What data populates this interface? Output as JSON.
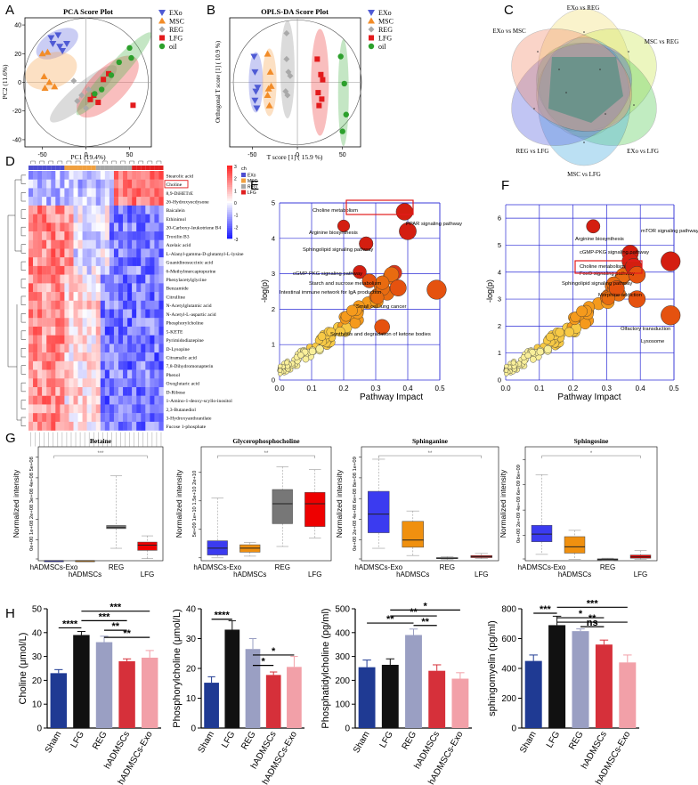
{
  "panel_letters": [
    "A",
    "B",
    "C",
    "D",
    "E",
    "F",
    "G",
    "H"
  ],
  "colors": {
    "exo": "#4f5bd5",
    "msc": "#f28c28",
    "reg": "#a9a9a9",
    "lfg": "#e31a1c",
    "oil": "#2ca02c",
    "sham": "#1f3a93",
    "lfg_bar": "#111111",
    "reg_bar": "#9a9fc3",
    "hadmscs": "#d6303a",
    "exo_bar": "#f2a0a8",
    "grid": "#2b2bd6"
  },
  "legend_groups": [
    "EXo",
    "MSC",
    "REG",
    "LFG",
    "oil"
  ],
  "chart_data": [
    {
      "panel": "A",
      "type": "scatter",
      "title": "PCA Score Plot",
      "xlabel": "PC1 (19.4%)",
      "ylabel": "PC2 (11.6%)",
      "xlim": [
        -70,
        75
      ],
      "ylim": [
        -45,
        45
      ],
      "xticks": [
        -50,
        0,
        50
      ],
      "yticks": [
        -40,
        -20,
        0,
        20,
        40
      ],
      "series": [
        {
          "name": "EXo",
          "points": [
            [
              -40,
              31
            ],
            [
              -32,
              33
            ],
            [
              -22,
              27
            ],
            [
              -30,
              25
            ],
            [
              -27,
              22
            ],
            [
              -38,
              27
            ]
          ]
        },
        {
          "name": "MSC",
          "points": [
            [
              -50,
              20
            ],
            [
              -44,
              21
            ],
            [
              -48,
              4
            ],
            [
              -42,
              0
            ],
            [
              -47,
              -4
            ],
            [
              -36,
              -3
            ]
          ]
        },
        {
          "name": "REG",
          "points": [
            [
              -10,
              -13
            ],
            [
              -5,
              -9
            ],
            [
              0,
              -18
            ],
            [
              3,
              -5
            ],
            [
              -14,
              1
            ]
          ]
        },
        {
          "name": "LFG",
          "points": [
            [
              5,
              -12
            ],
            [
              9,
              -9
            ],
            [
              14,
              -14
            ],
            [
              20,
              2
            ],
            [
              26,
              6
            ],
            [
              54,
              -16
            ]
          ]
        },
        {
          "name": "oil",
          "points": [
            [
              10,
              -8
            ],
            [
              18,
              -5
            ],
            [
              29,
              5
            ],
            [
              38,
              14
            ],
            [
              50,
              24
            ],
            [
              52,
              17
            ]
          ]
        }
      ]
    },
    {
      "panel": "B",
      "type": "scatter",
      "title": "OPLS-DA Score Plot",
      "xlabel": "T score [1] ( 15.9 %)",
      "ylabel": "Orthogonal T score [1] ( 10.9 %)",
      "xlim": [
        -75,
        70
      ],
      "ylim": [
        -50,
        50
      ],
      "xticks": [
        -50,
        0,
        50
      ],
      "yticks": [],
      "series": [
        {
          "name": "EXo",
          "points": [
            [
              -48,
              20
            ],
            [
              -47,
              8
            ],
            [
              -46,
              -7
            ],
            [
              -47,
              -14
            ],
            [
              -45,
              -20
            ],
            [
              -44,
              -4
            ]
          ]
        },
        {
          "name": "MSC",
          "points": [
            [
              -33,
              22
            ],
            [
              -30,
              8
            ],
            [
              -32,
              -5
            ],
            [
              -31,
              -18
            ],
            [
              -29,
              -3
            ],
            [
              -33,
              -10
            ]
          ]
        },
        {
          "name": "REG",
          "points": [
            [
              -12,
              38
            ],
            [
              -12,
              18
            ],
            [
              -10,
              8
            ],
            [
              -8,
              5
            ],
            [
              -13,
              -7
            ],
            [
              -11,
              -10
            ]
          ]
        },
        {
          "name": "LFG",
          "points": [
            [
              22,
              18
            ],
            [
              26,
              6
            ],
            [
              28,
              2
            ],
            [
              23,
              -8
            ],
            [
              27,
              -13
            ],
            [
              24,
              -18
            ]
          ]
        },
        {
          "name": "oil",
          "points": [
            [
              48,
              20
            ],
            [
              52,
              -1
            ],
            [
              54,
              -25
            ],
            [
              50,
              -38
            ]
          ]
        }
      ]
    },
    {
      "panel": "C",
      "type": "venn",
      "sets": [
        "EXo vs REG",
        "MSC vs REG",
        "EXo vs LFG",
        "MSC vs LFG",
        "REG vs LFG",
        "EXo vs MSC"
      ]
    },
    {
      "panel": "D",
      "type": "heatmap",
      "legend_title": "ch",
      "legend_groups": [
        "EXo",
        "MSC",
        "REG",
        "LFG"
      ],
      "scale_ticks": [
        "3",
        "2",
        "1",
        "0",
        "-1",
        "-2",
        "-3"
      ],
      "rows": [
        "Stearolic acid",
        "Choline",
        "8,9-DiHETrE",
        "26-Hydroxyecdysone",
        "Baicalein",
        "Ethinimol",
        "20-Carboxy-leukotriene B4",
        "Troxilin B3",
        "Azelaic acid",
        "L-Alanyl-gamma-D-glutamyl-L-lysine",
        "Guanidinosuccinic acid",
        "6-Methylmercaptopurine",
        "Phenylacetylglycine",
        "Benzamide",
        "Citrulline",
        "N-Acetylglutamic acid",
        "N-Acetyl-L-aspartic acid",
        "Phosphorylcholine",
        "5-KETE",
        "Pyrimidodiazepine",
        "D-Lysopine",
        "Citramalic acid",
        "7,8-Dihydromonapterin",
        "Phenol",
        "Oxoglutaric acid",
        "D-Ribose",
        "1-Amino-1-deoxy-scyllo-inositol",
        "2,3-Butanediol",
        "3-Hydroxyanthranilate",
        "Fucose 1-phosphate"
      ],
      "highlight_row": "Choline"
    },
    {
      "panel": "E",
      "type": "scatter",
      "xlabel": "Pathway Impact",
      "ylabel": "-log(p)",
      "xlim": [
        0,
        0.5
      ],
      "ylim": [
        0,
        5
      ],
      "xticks": [
        "0.0",
        "0.1",
        "0.2",
        "0.3",
        "0.4",
        "0.5"
      ],
      "yticks": [
        "0",
        "1",
        "2",
        "3",
        "4",
        "5"
      ],
      "labeled_points": [
        {
          "label": "Choline metabolism",
          "x": 0.39,
          "y": 4.75
        },
        {
          "label": "PPAR signaling pathway",
          "x": 0.4,
          "y": 4.2
        },
        {
          "label": "Arginine biosynthesis",
          "x": 0.2,
          "y": 4.35
        },
        {
          "label": "Sphingolipid signaling pathway",
          "x": 0.27,
          "y": 3.85
        },
        {
          "label": "cGMP-PKG signaling pathway",
          "x": 0.25,
          "y": 3.05
        },
        {
          "label": "Starch and sucrose metabolism",
          "x": 0.28,
          "y": 2.8
        },
        {
          "label": "Intestinal immune network for IgA production",
          "x": 0.37,
          "y": 2.6
        },
        {
          "label": "Small cell lung cancer",
          "x": 0.49,
          "y": 2.55
        },
        {
          "label": "Synthesis and degradation of ketone bodies",
          "x": 0.32,
          "y": 1.5
        }
      ]
    },
    {
      "panel": "F",
      "type": "scatter",
      "xlabel": "Pathway Impact",
      "ylabel": "-log(p)",
      "xlim": [
        0,
        0.5
      ],
      "ylim": [
        0,
        6.5
      ],
      "xticks": [
        "0.0",
        "0.1",
        "0.2",
        "0.3",
        "0.4",
        "0.5"
      ],
      "yticks": [
        "0",
        "1",
        "2",
        "3",
        "4",
        "5",
        "6"
      ],
      "labeled_points": [
        {
          "label": "Arginine biosynthesis",
          "x": 0.26,
          "y": 5.7
        },
        {
          "label": "mTOR signaling pathway",
          "x": 0.49,
          "y": 4.4
        },
        {
          "label": "cGMP-PKG signaling pathway",
          "x": 0.37,
          "y": 4.7
        },
        {
          "label": "Choline metabolism",
          "x": 0.37,
          "y": 4.4
        },
        {
          "label": "FoxO signaling pathway",
          "x": 0.38,
          "y": 4.2
        },
        {
          "label": "Sphingolipid signaling pathway",
          "x": 0.39,
          "y": 3.9
        },
        {
          "label": "Morphine addiction",
          "x": 0.33,
          "y": 3.4
        },
        {
          "label": "Olfactory transduction",
          "x": 0.39,
          "y": 3.0
        },
        {
          "label": "Lysosome",
          "x": 0.49,
          "y": 2.4
        }
      ]
    },
    {
      "panel": "G1",
      "type": "boxplot",
      "title": "Betaine",
      "ylabel": "Normalized intensity",
      "categories": [
        "hADMSCs-Exo",
        "hADMSCs",
        "REG",
        "LFG"
      ],
      "yticks": [
        "0e+00",
        "1e+08",
        "2e+08",
        "3e+08",
        "4e+08",
        "5e+08"
      ],
      "ylim": [
        0,
        5.5
      ],
      "significance": "***",
      "boxes": [
        [
          0,
          0,
          0,
          0,
          0
        ],
        [
          0,
          0,
          0,
          0,
          0
        ],
        [
          0.6,
          1.55,
          1.6,
          1.7,
          4.1
        ],
        [
          0.1,
          0.5,
          0.75,
          0.9,
          1.2
        ]
      ]
    },
    {
      "panel": "G2",
      "type": "boxplot",
      "title": "Glycerophosphocholine",
      "ylabel": "Normalized intensity",
      "categories": [
        "hADMSCs-Exo",
        "hADMSCs",
        "REG",
        "LFG"
      ],
      "yticks": [
        "5e+09",
        "1e+10",
        "1.5e+10",
        "2e+10"
      ],
      "ylim": [
        0.3,
        2.3
      ],
      "significance": "**",
      "boxes": [
        [
          0.35,
          0.4,
          0.52,
          0.65,
          1.4
        ],
        [
          0.38,
          0.45,
          0.52,
          0.58,
          0.62
        ],
        [
          0.55,
          0.95,
          1.3,
          1.55,
          1.95
        ],
        [
          0.7,
          0.9,
          1.3,
          1.5,
          1.9
        ]
      ]
    },
    {
      "panel": "G3",
      "type": "boxplot",
      "title": "Sphinganine",
      "ylabel": "Normalized intensity",
      "categories": [
        "hADMSCs-Exo",
        "hADMSCs",
        "REG",
        "LFG"
      ],
      "yticks": [
        "0e+00",
        "2e+08",
        "4e+08",
        "6e+08",
        "8e+08",
        "1e+09"
      ],
      "ylim": [
        0,
        11
      ],
      "significance": "**",
      "boxes": [
        [
          1.2,
          2.7,
          4.5,
          6.7,
          9.8
        ],
        [
          0.5,
          1.3,
          2.0,
          3.8,
          4.8
        ],
        [
          0.1,
          0.2,
          0.25,
          0.3,
          0.4
        ],
        [
          0.2,
          0.3,
          0.4,
          0.5,
          0.7
        ]
      ]
    },
    {
      "panel": "G4",
      "type": "boxplot",
      "title": "Sphingosine",
      "ylabel": "Normalized intensity",
      "categories": [
        "hADMSCs-Exo",
        "hADMSCs",
        "REG",
        "LFG"
      ],
      "yticks": [
        "0e+00",
        "2e+09",
        "4e+09",
        "6e+09",
        "8e+09"
      ],
      "ylim": [
        0,
        9
      ],
      "significance": "*",
      "boxes": [
        [
          0.5,
          1.5,
          2.1,
          2.8,
          6.8
        ],
        [
          0.1,
          0.6,
          1.1,
          1.9,
          2.4
        ],
        [
          0,
          0.05,
          0.1,
          0.15,
          0.2
        ],
        [
          0.1,
          0.2,
          0.3,
          0.45,
          0.8
        ]
      ]
    },
    {
      "panel": "H1",
      "type": "bar",
      "ylabel": "Choline (μmol/L)",
      "categories": [
        "Sham",
        "LFG",
        "REG",
        "hADMSCs",
        "hADMSCs-Exo"
      ],
      "values": [
        23,
        39,
        36,
        28,
        29.5
      ],
      "errors": [
        1.5,
        1.5,
        2.5,
        1,
        3
      ],
      "yticks": [
        "0",
        "10",
        "20",
        "30",
        "40",
        "50"
      ],
      "ylim": [
        0,
        50
      ],
      "significance": [
        {
          "from": 0,
          "to": 1,
          "label": "****",
          "y": 42
        },
        {
          "from": 1,
          "to": 4,
          "label": "***",
          "y": 49
        },
        {
          "from": 1,
          "to": 3,
          "label": "***",
          "y": 45
        },
        {
          "from": 2,
          "to": 3,
          "label": "**",
          "y": 41
        },
        {
          "from": 2,
          "to": 4,
          "label": "**",
          "y": 38
        }
      ]
    },
    {
      "panel": "H2",
      "type": "bar",
      "ylabel": "Phosphorylcholine (μmol/L)",
      "categories": [
        "Sham",
        "LFG",
        "REG",
        "hADMSCs",
        "hADMSCs-Exo"
      ],
      "values": [
        15.2,
        33,
        26.5,
        17.8,
        20.5
      ],
      "errors": [
        2,
        3,
        3.5,
        1,
        3.5
      ],
      "yticks": [
        "0",
        "10",
        "20",
        "30",
        "40"
      ],
      "ylim": [
        0,
        40
      ],
      "significance": [
        {
          "from": 0,
          "to": 1,
          "label": "****",
          "y": 36.5
        },
        {
          "from": 2,
          "to": 4,
          "label": "*",
          "y": 24.5
        },
        {
          "from": 2,
          "to": 3,
          "label": "*",
          "y": 21
        }
      ]
    },
    {
      "panel": "H3",
      "type": "bar",
      "ylabel": "Phosphatidylcholine (pg/ml)",
      "categories": [
        "Sham",
        "LFG",
        "REG",
        "hADMSCs",
        "hADMSCs-Exo"
      ],
      "values": [
        255,
        265,
        390,
        240,
        207
      ],
      "errors": [
        30,
        25,
        25,
        25,
        25
      ],
      "yticks": [
        "0",
        "100",
        "200",
        "300",
        "400",
        "500"
      ],
      "ylim": [
        0,
        500
      ],
      "significance": [
        {
          "from": 1,
          "to": 4,
          "label": "*",
          "y": 495
        },
        {
          "from": 1,
          "to": 3,
          "label": "**",
          "y": 470
        },
        {
          "from": 0,
          "to": 2,
          "label": "**",
          "y": 440
        },
        {
          "from": 2,
          "to": 3,
          "label": "**",
          "y": 430
        }
      ]
    },
    {
      "panel": "H4",
      "type": "bar",
      "ylabel": "sphingomyelin (pg/ml)",
      "categories": [
        "Sham",
        "LFG",
        "REG",
        "hADMSCs",
        "hADMSCs-Exo"
      ],
      "values": [
        450,
        690,
        650,
        560,
        440
      ],
      "errors": [
        40,
        60,
        15,
        30,
        50
      ],
      "yticks": [
        "0",
        "200",
        "400",
        "600",
        "800"
      ],
      "ylim": [
        0,
        800
      ],
      "significance": [
        {
          "from": 0,
          "to": 1,
          "label": "***",
          "y": 770
        },
        {
          "from": 1,
          "to": 4,
          "label": "***",
          "y": 810
        },
        {
          "from": 1,
          "to": 3,
          "label": "*",
          "y": 740
        },
        {
          "from": 1,
          "to": 4,
          "label": "**",
          "y": 710
        },
        {
          "from": 2,
          "to": 3,
          "label": "ns",
          "y": 680
        }
      ]
    }
  ]
}
